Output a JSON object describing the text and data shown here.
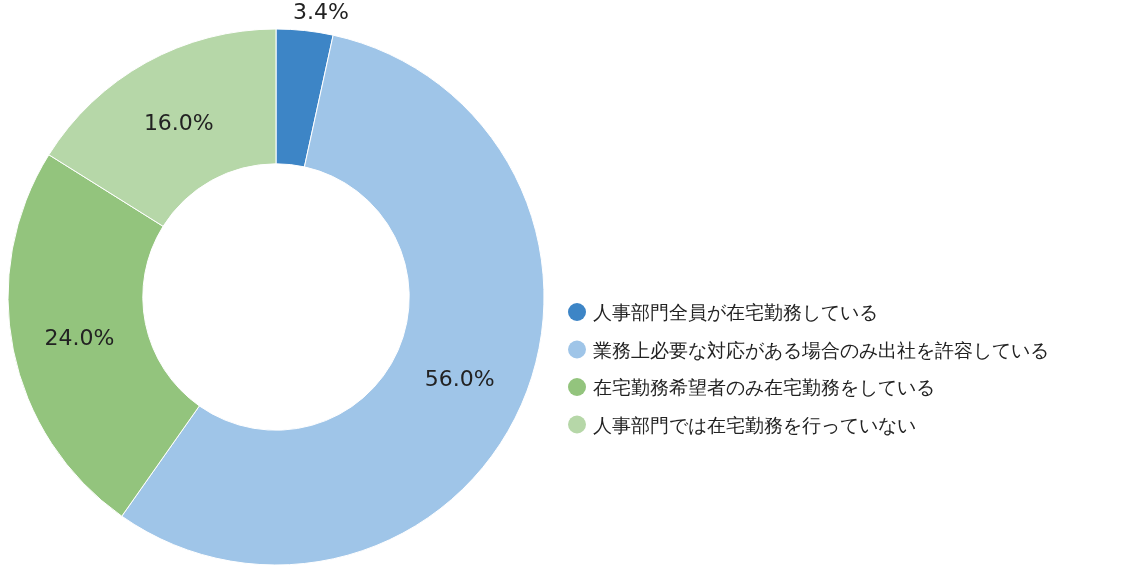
{
  "chart_data": {
    "type": "donut",
    "categories": [
      "人事部門全員が在宅勤務している",
      "業務上必要な対応がある場合のみ出社を許容している",
      "在宅勤務希望者のみ在宅勤務をしている",
      "人事部門では在宅勤務を行っていない"
    ],
    "values": [
      3.4,
      56.0,
      24.0,
      16.0
    ],
    "colors": [
      "#3d85c6",
      "#9fc5e8",
      "#93c47d",
      "#b6d7a8"
    ],
    "value_labels": [
      "3.4%",
      "56.0%",
      "24.0%",
      "16.0%"
    ],
    "legend": "right"
  }
}
